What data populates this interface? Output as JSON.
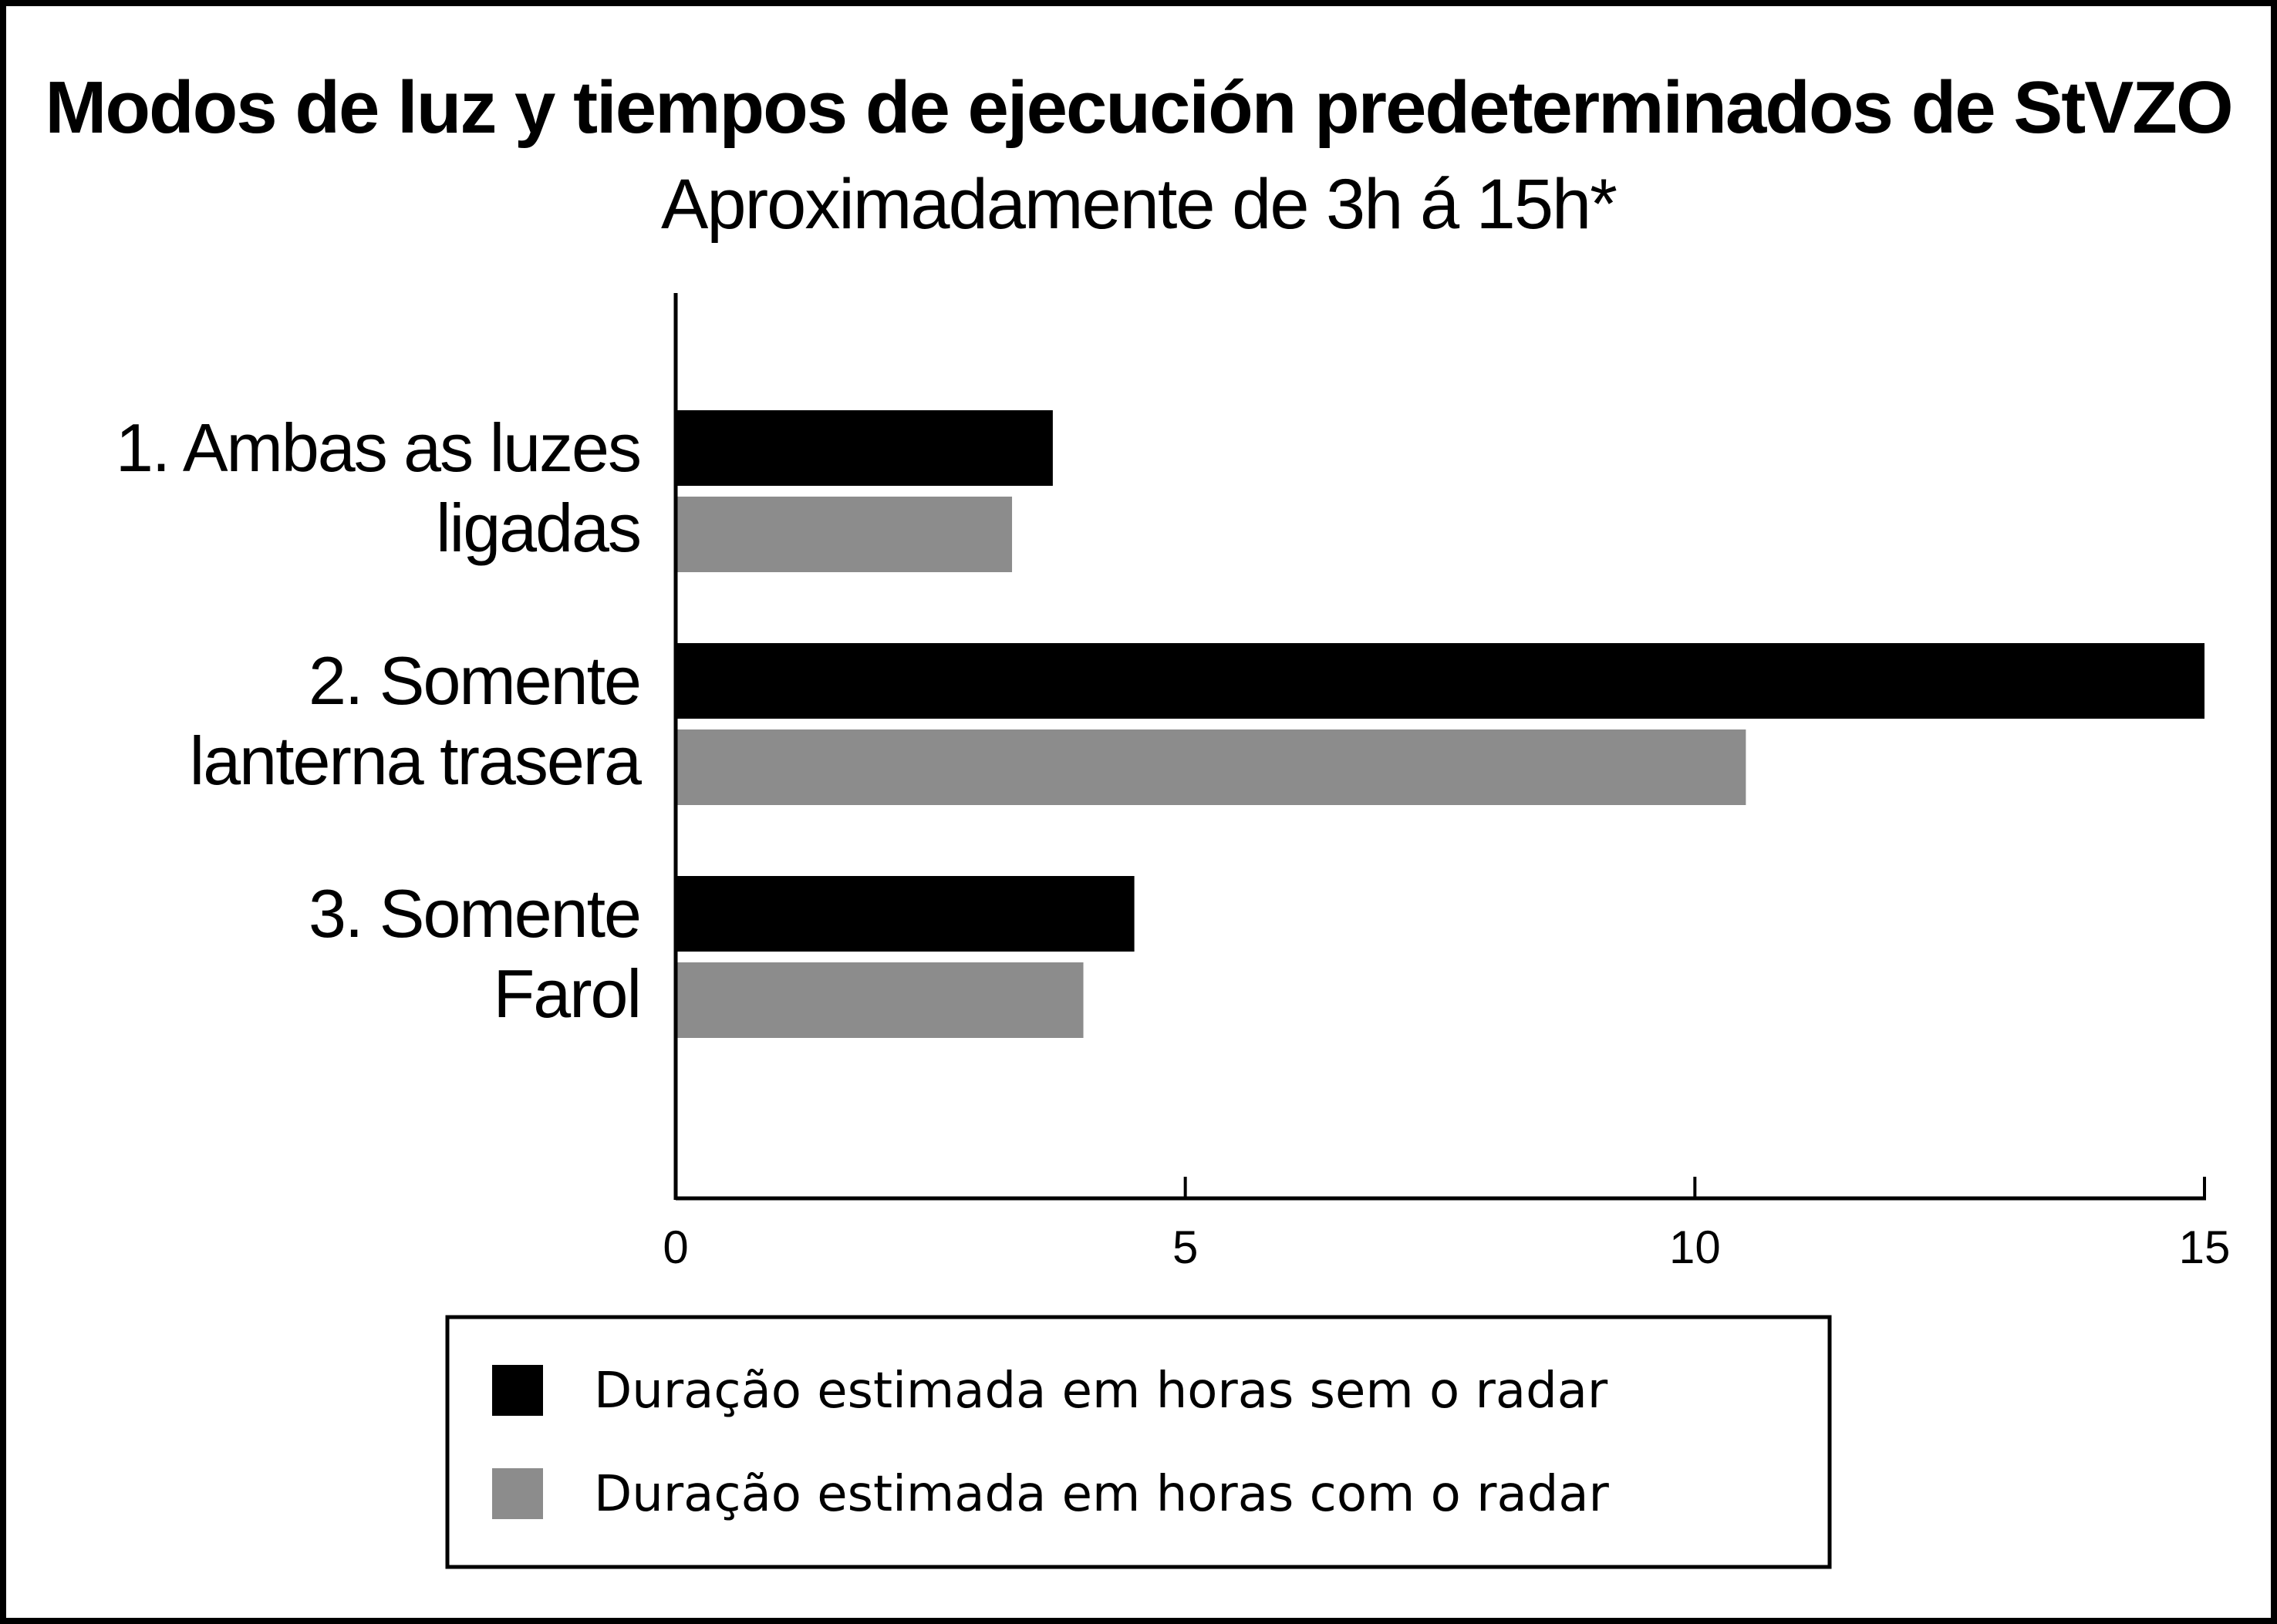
{
  "chart_data": {
    "type": "bar",
    "orientation": "horizontal",
    "title": "Modos de luz y tiempos de ejecución predeterminados de StVZO",
    "subtitle": "Aproximadamente de 3h á 15h*",
    "categories": [
      [
        "1. Ambas as luzes",
        "ligadas"
      ],
      [
        "2. Somente",
        "lanterna trasera"
      ],
      [
        "3. Somente",
        "Farol"
      ]
    ],
    "series": [
      {
        "name": "Duração estimada em horas sem o radar",
        "values": [
          3.7,
          15,
          4.5
        ],
        "color": "#000000"
      },
      {
        "name": "Duração estimada em horas com o radar",
        "values": [
          3.3,
          10.5,
          4.0
        ],
        "color": "#8c8c8c"
      }
    ],
    "xlim": [
      0,
      15
    ],
    "xticks": [
      0,
      5,
      10,
      15
    ],
    "grid": false,
    "legend_position": "bottom"
  }
}
